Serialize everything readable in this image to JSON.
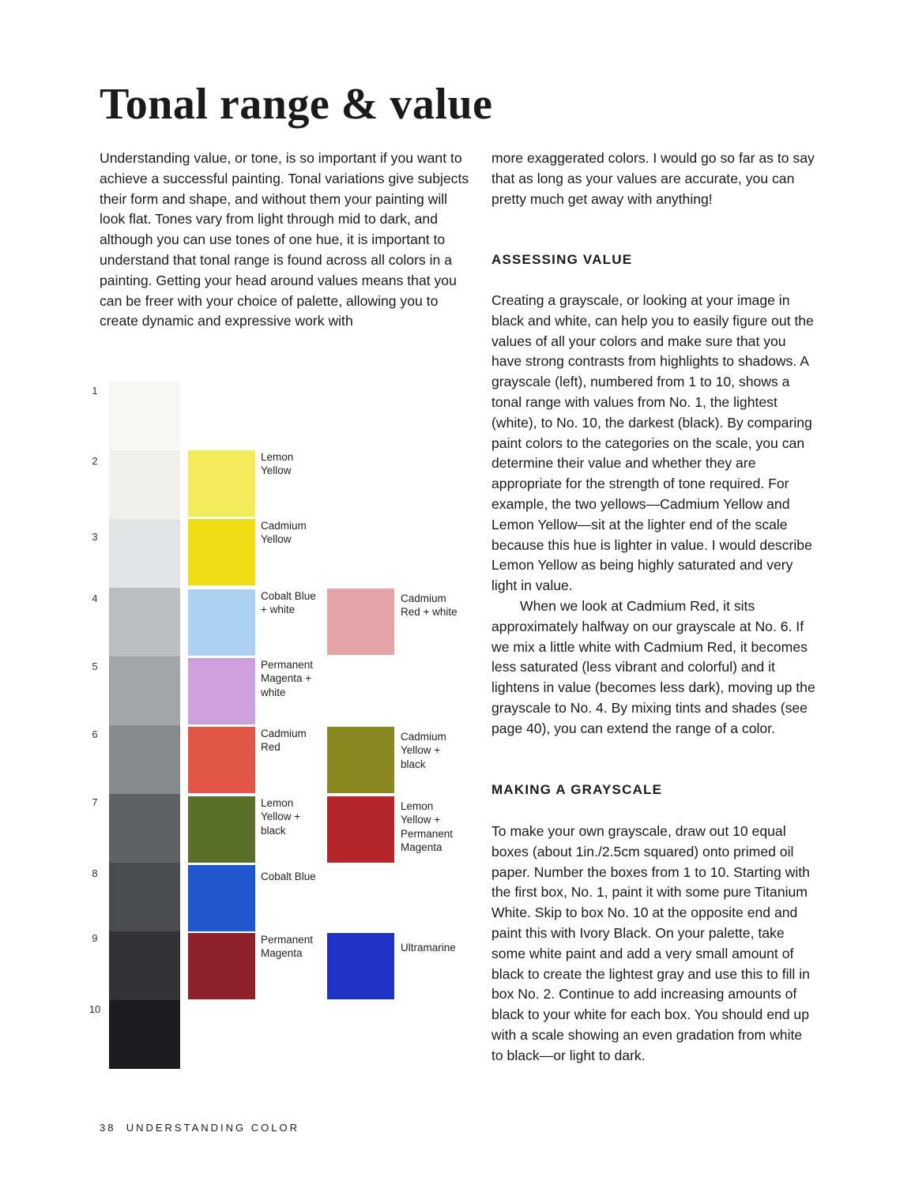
{
  "header": {
    "title": "Tonal range & value"
  },
  "body": {
    "column_1": {
      "paragraph": "Understanding value, or tone, is so important if you want to achieve a successful painting. Tonal variations give subjects their form and shape, and without them your painting will look flat. Tones vary from light through mid to dark, and although you can use tones of one hue, it is important to understand that tonal range is found across all colors in a painting. Getting your head around values means that you can be freer with your choice of palette, allowing you to create dynamic and expressive work with"
    },
    "column_2": {
      "intro": "more exaggerated colors. I would go so far as to say that as long as your values are accurate, you can pretty much get away with anything!",
      "sections": [
        {
          "heading": "ASSESSING VALUE",
          "paragraphs": [
            "Creating a grayscale, or looking at your image in black and white, can help you to easily figure out the values of all your colors and make sure that you have strong contrasts from highlights to shadows. A grayscale (left), numbered from 1 to 10, shows a tonal range with values from No. 1, the lightest (white), to No. 10, the darkest (black). By comparing paint colors to the categories on the scale, you can determine their value and whether they are appropriate for the strength of tone required. For example, the two yellows—Cadmium Yellow and Lemon Yellow—sit at the lighter end of the scale because this hue is lighter in value. I would describe Lemon Yellow as being highly saturated and very light in value.",
            "When we look at Cadmium Red, it sits approximately halfway on our grayscale at No. 6. If we mix a little white with Cadmium Red, it becomes less saturated (less vibrant and colorful) and it lightens in value (becomes less dark), moving up the grayscale to No. 4. By mixing tints and shades (see page 40), you can extend the range of a color."
          ]
        },
        {
          "heading": "MAKING A GRAYSCALE",
          "paragraphs": [
            "To make your own grayscale, draw out 10 equal boxes (about 1in./2.5cm squared) onto primed oil paper. Number the boxes from 1 to 10. Starting with the first box, No. 1, paint it with some pure Titanium White. Skip to box No. 10 at the opposite end and paint this with Ivory Black. On your palette, take some white paint and add a very small amount of black to create the lightest gray and use this to fill in box No. 2. Continue to add increasing amounts of black to your white for each box. You should end up with a scale showing an even gradation from white to black—or light to dark."
          ]
        }
      ]
    }
  },
  "figure": {
    "scale_numbers": [
      "1",
      "2",
      "3",
      "4",
      "5",
      "6",
      "7",
      "8",
      "9",
      "10"
    ],
    "column_a": [
      "Lemon Yellow",
      "Cadmium Yellow",
      "Cobalt Blue + white",
      "Permanent Magenta + white",
      "Cadmium Red",
      "Lemon Yellow + black",
      "Cobalt Blue",
      "Permanent Magenta"
    ],
    "column_b": [
      "Cadmium Red + white",
      "Cadmium Yellow + black",
      "Lemon Yellow + Permanent Magenta",
      "Ultramarine"
    ]
  },
  "footer": {
    "page_number": "38",
    "section": "UNDERSTANDING COLOR"
  }
}
